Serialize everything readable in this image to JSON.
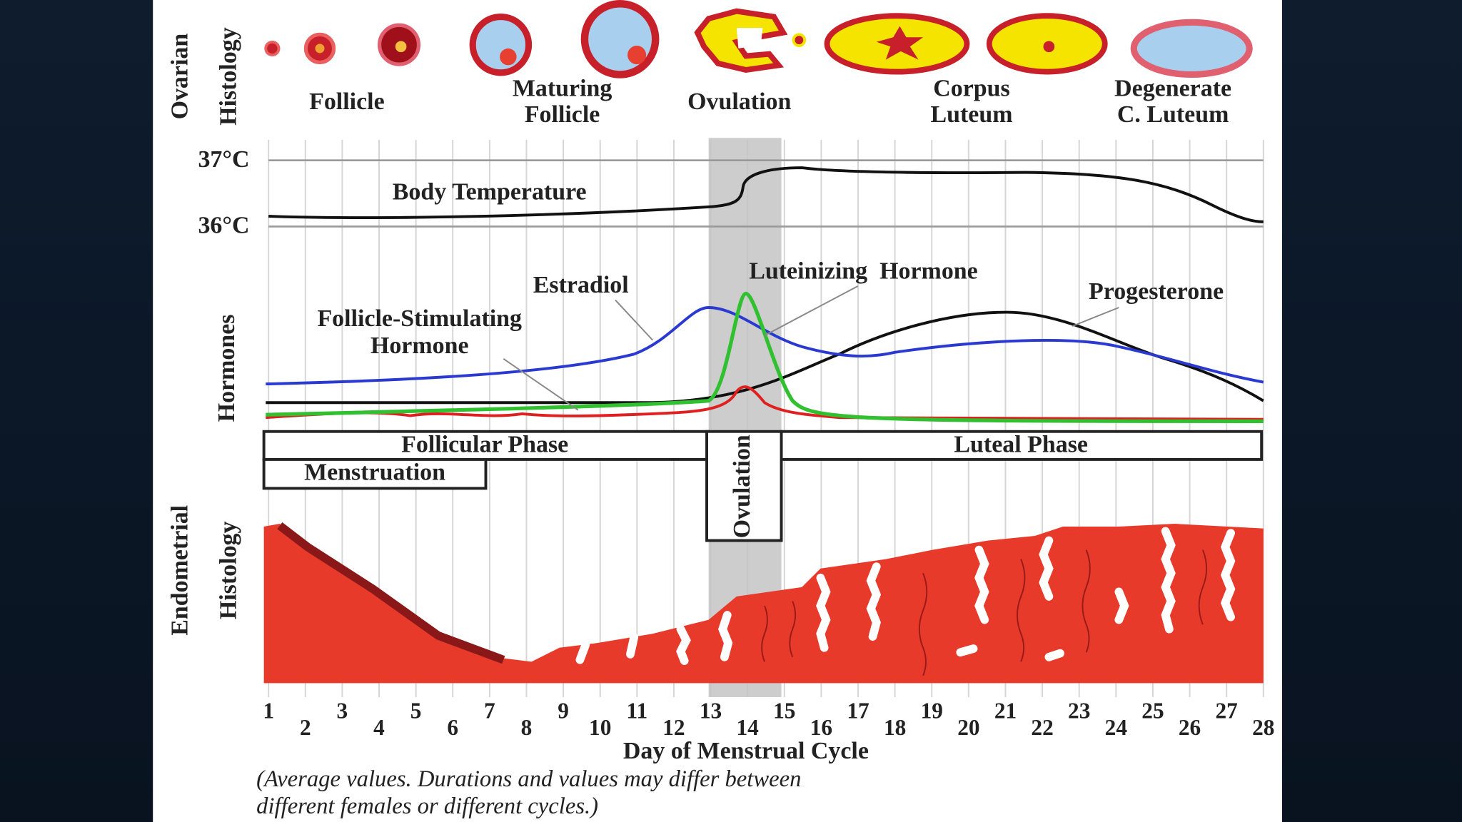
{
  "ovarian_histology": {
    "axis_label": [
      "Ovarian",
      "Histology"
    ],
    "stages": [
      [
        "Follicle"
      ],
      [
        "Maturing",
        "Follicle"
      ],
      [
        "Ovulation"
      ],
      [
        "Corpus",
        "Luteum"
      ],
      [
        "Degenerate",
        "C. Luteum"
      ]
    ]
  },
  "temperature": {
    "label": "Body Temperature",
    "ticks": [
      "37°C",
      "36°C"
    ]
  },
  "hormones": {
    "axis_label": "Hormones",
    "estradiol": "Estradiol",
    "lh": "Luteinizing  Hormone",
    "progesterone": "Progesterone",
    "fsh": [
      "Follicle-Stimulating",
      "Hormone"
    ]
  },
  "phases": {
    "follicular": "Follicular Phase",
    "luteal": "Luteal Phase",
    "menstruation": "Menstruation",
    "ovulation": "Ovulation"
  },
  "endometrium": {
    "axis_label": [
      "Endometrial",
      "Histology"
    ]
  },
  "x_axis": {
    "days": [
      1,
      2,
      3,
      4,
      5,
      6,
      7,
      8,
      9,
      10,
      11,
      12,
      13,
      14,
      15,
      16,
      17,
      18,
      19,
      20,
      21,
      22,
      23,
      24,
      25,
      26,
      27,
      28
    ],
    "title": "Day of Menstrual Cycle"
  },
  "note": [
    "(Average values. Durations and values may differ between",
    "different females or different cycles.)"
  ]
}
